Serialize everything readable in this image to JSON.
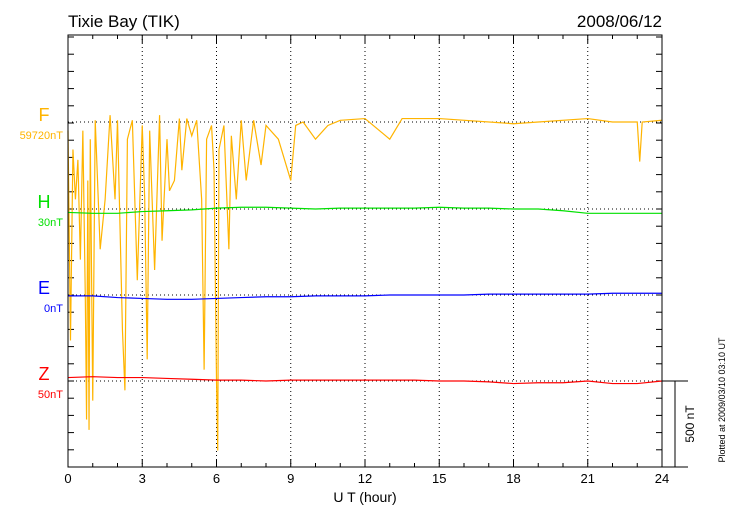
{
  "chart_data": {
    "type": "line",
    "title": "Tixie Bay (TIK)",
    "date": "2008/06/12",
    "xlabel": "U T (hour)",
    "xlim": [
      0,
      24
    ],
    "xticks": [
      "0",
      "3",
      "6",
      "9",
      "12",
      "15",
      "18",
      "21",
      "24"
    ],
    "scale_bar_label": "500 nT",
    "scale_bar_nT": 500,
    "footer": "Plotted at 2009/03/10 03:10 UT",
    "grid": "dotted",
    "series": [
      {
        "name": "F",
        "baseline_label": "59720nT",
        "color": "#ffb400",
        "points": [
          [
            0,
            -50
          ],
          [
            0.1,
            -1270
          ],
          [
            0.2,
            -160
          ],
          [
            0.3,
            -450
          ],
          [
            0.4,
            -220
          ],
          [
            0.5,
            -800
          ],
          [
            0.6,
            -50
          ],
          [
            0.7,
            -1030
          ],
          [
            0.75,
            -1730
          ],
          [
            0.8,
            -340
          ],
          [
            0.85,
            -1790
          ],
          [
            0.9,
            -100
          ],
          [
            1.0,
            -1620
          ],
          [
            1.1,
            10
          ],
          [
            1.3,
            -740
          ],
          [
            1.5,
            -450
          ],
          [
            1.7,
            40
          ],
          [
            1.9,
            -450
          ],
          [
            2.0,
            10
          ],
          [
            2.2,
            -1210
          ],
          [
            2.3,
            -1560
          ],
          [
            2.4,
            -100
          ],
          [
            2.6,
            10
          ],
          [
            2.8,
            -920
          ],
          [
            3.0,
            -20
          ],
          [
            3.1,
            -450
          ],
          [
            3.2,
            -1380
          ],
          [
            3.3,
            -50
          ],
          [
            3.5,
            -860
          ],
          [
            3.7,
            40
          ],
          [
            3.8,
            -690
          ],
          [
            4.0,
            -100
          ],
          [
            4.1,
            -400
          ],
          [
            4.3,
            -340
          ],
          [
            4.5,
            20
          ],
          [
            4.6,
            -280
          ],
          [
            4.8,
            20
          ],
          [
            5.0,
            -80
          ],
          [
            5.2,
            10
          ],
          [
            5.4,
            -450
          ],
          [
            5.5,
            -1440
          ],
          [
            5.6,
            -100
          ],
          [
            5.8,
            -20
          ],
          [
            5.9,
            -280
          ],
          [
            6.0,
            -1500
          ],
          [
            6.05,
            -1910
          ],
          [
            6.1,
            -160
          ],
          [
            6.3,
            -20
          ],
          [
            6.5,
            -740
          ],
          [
            6.6,
            -80
          ],
          [
            6.8,
            -450
          ],
          [
            7.0,
            10
          ],
          [
            7.2,
            -340
          ],
          [
            7.5,
            10
          ],
          [
            7.8,
            -250
          ],
          [
            8.0,
            -20
          ],
          [
            8.5,
            -100
          ],
          [
            9.0,
            -340
          ],
          [
            9.2,
            -20
          ],
          [
            9.5,
            0
          ],
          [
            10.0,
            -100
          ],
          [
            10.5,
            -20
          ],
          [
            11,
            10
          ],
          [
            12,
            20
          ],
          [
            13,
            -100
          ],
          [
            13.5,
            20
          ],
          [
            15,
            20
          ],
          [
            18,
            -10
          ],
          [
            19,
            0
          ],
          [
            21,
            20
          ],
          [
            22,
            0
          ],
          [
            23,
            0
          ],
          [
            23.1,
            -230
          ],
          [
            23.2,
            0
          ],
          [
            24,
            10
          ]
        ]
      },
      {
        "name": "H",
        "baseline_label": "30nT",
        "color": "#00e000",
        "points": [
          [
            0,
            -20
          ],
          [
            1,
            -25
          ],
          [
            2,
            -25
          ],
          [
            3,
            -15
          ],
          [
            4,
            -10
          ],
          [
            5,
            -5
          ],
          [
            6,
            5
          ],
          [
            7,
            10
          ],
          [
            8,
            10
          ],
          [
            9,
            5
          ],
          [
            10,
            0
          ],
          [
            11,
            5
          ],
          [
            12,
            5
          ],
          [
            13,
            5
          ],
          [
            14,
            5
          ],
          [
            15,
            10
          ],
          [
            16,
            5
          ],
          [
            17,
            5
          ],
          [
            18,
            0
          ],
          [
            19,
            0
          ],
          [
            20,
            -10
          ],
          [
            21,
            -25
          ],
          [
            22,
            -25
          ],
          [
            23,
            -25
          ],
          [
            24,
            -25
          ]
        ]
      },
      {
        "name": "E",
        "baseline_label": "0nT",
        "color": "#0000ff",
        "points": [
          [
            0,
            -5
          ],
          [
            1,
            -5
          ],
          [
            2,
            -15
          ],
          [
            3,
            -20
          ],
          [
            4,
            -25
          ],
          [
            5,
            -25
          ],
          [
            6,
            -20
          ],
          [
            7,
            -15
          ],
          [
            8,
            -10
          ],
          [
            9,
            -10
          ],
          [
            10,
            -5
          ],
          [
            11,
            -5
          ],
          [
            12,
            -5
          ],
          [
            13,
            0
          ],
          [
            14,
            0
          ],
          [
            15,
            0
          ],
          [
            16,
            0
          ],
          [
            17,
            5
          ],
          [
            18,
            5
          ],
          [
            19,
            5
          ],
          [
            20,
            5
          ],
          [
            21,
            5
          ],
          [
            22,
            10
          ],
          [
            23,
            10
          ],
          [
            24,
            10
          ]
        ]
      },
      {
        "name": "Z",
        "baseline_label": "50nT",
        "color": "#ff0000",
        "points": [
          [
            0,
            20
          ],
          [
            1,
            25
          ],
          [
            2,
            20
          ],
          [
            3,
            20
          ],
          [
            4,
            15
          ],
          [
            5,
            10
          ],
          [
            6,
            5
          ],
          [
            7,
            5
          ],
          [
            8,
            0
          ],
          [
            9,
            5
          ],
          [
            10,
            5
          ],
          [
            11,
            5
          ],
          [
            12,
            5
          ],
          [
            13,
            5
          ],
          [
            14,
            5
          ],
          [
            15,
            0
          ],
          [
            16,
            0
          ],
          [
            17,
            -5
          ],
          [
            18,
            -15
          ],
          [
            19,
            -10
          ],
          [
            20,
            -10
          ],
          [
            21,
            0
          ],
          [
            22,
            -15
          ],
          [
            23,
            -15
          ],
          [
            24,
            0
          ]
        ]
      }
    ]
  }
}
